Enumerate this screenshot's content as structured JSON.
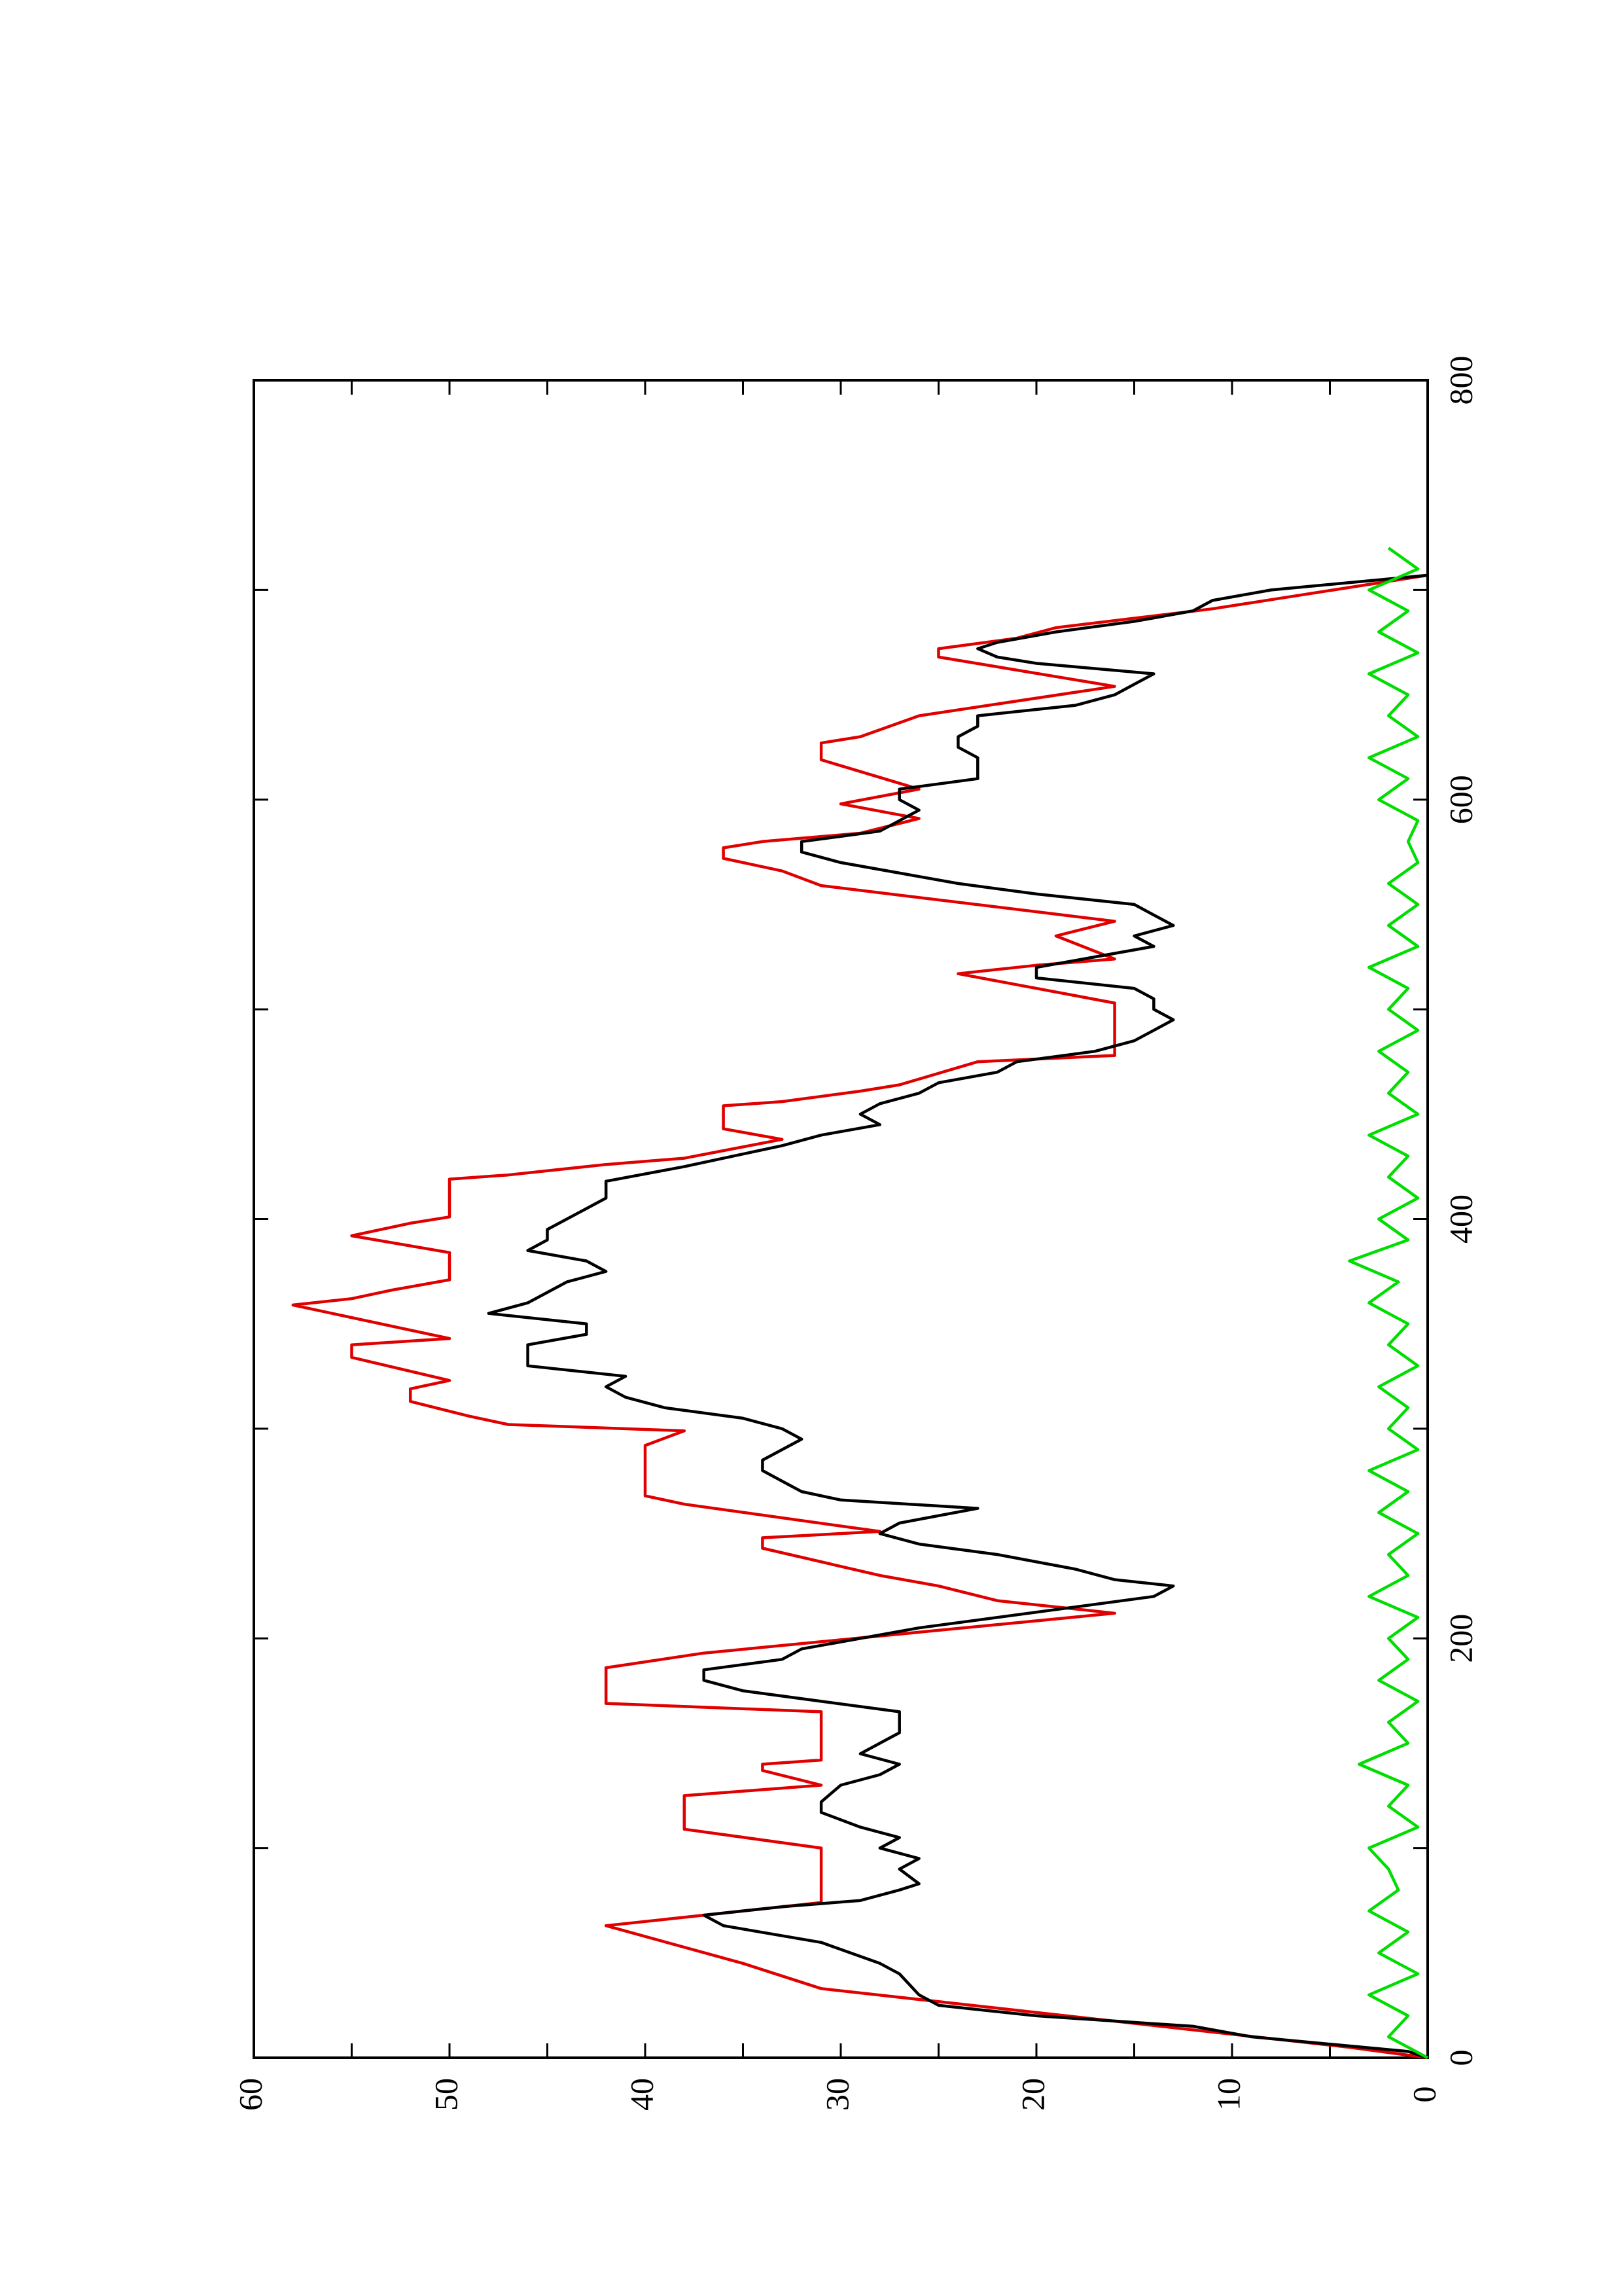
{
  "chart_data": {
    "type": "line",
    "orientation": "rotated",
    "xlim": [
      0,
      800
    ],
    "xticks": [
      0,
      200,
      400,
      600,
      800
    ],
    "xminorticks": [
      100,
      300,
      500,
      700
    ],
    "ylim": [
      0,
      60
    ],
    "yticks": [
      0,
      10,
      20,
      30,
      40,
      50,
      60
    ],
    "yminorticks": [
      5,
      15,
      25,
      35,
      45,
      55
    ],
    "series": [
      {
        "color": "#e00000",
        "x": [
          0,
          5,
          33,
          45,
          63,
          74,
          100,
          109,
          125,
          130,
          137,
          140,
          142,
          165,
          169,
          186,
          193,
          212,
          218,
          225,
          230,
          243,
          248,
          251,
          264,
          268,
          292,
          299,
          302,
          306,
          313,
          319,
          323,
          334,
          340,
          343,
          359,
          362,
          366,
          371,
          384,
          392,
          398,
          401,
          419,
          421,
          426,
          429,
          438,
          443,
          454,
          456,
          461,
          464,
          475,
          478,
          503,
          517,
          521,
          524,
          535,
          542,
          559,
          566,
          572,
          577,
          580,
          584,
          591,
          598,
          605,
          619,
          627,
          630,
          640,
          654,
          668,
          672,
          677,
          682,
          691,
          707
        ],
        "values": [
          0,
          4,
          31,
          35,
          42,
          31,
          31,
          38,
          38,
          31,
          34,
          34,
          31,
          31,
          42,
          42,
          37,
          16,
          22,
          25,
          28,
          34,
          34,
          28,
          38,
          40,
          40,
          38,
          47,
          49,
          52,
          52,
          50,
          55,
          55,
          50,
          58,
          55,
          53,
          50,
          50,
          55,
          52,
          50,
          50,
          47,
          42,
          38,
          33,
          36,
          36,
          33,
          29,
          27,
          23,
          16,
          16,
          24,
          20,
          16,
          19,
          16,
          31,
          33,
          36,
          36,
          34,
          29,
          26,
          30,
          26,
          31,
          31,
          29,
          26,
          16,
          25,
          25,
          21,
          19,
          11,
          0
        ]
      },
      {
        "color": "#000000",
        "x": [
          0,
          3,
          10,
          15,
          20,
          25,
          30,
          40,
          45,
          55,
          63,
          68,
          72,
          75,
          80,
          83,
          90,
          95,
          100,
          105,
          110,
          117,
          122,
          130,
          135,
          140,
          145,
          150,
          155,
          165,
          170,
          175,
          180,
          185,
          190,
          195,
          205,
          215,
          220,
          225,
          228,
          233,
          240,
          245,
          250,
          255,
          262,
          266,
          270,
          275,
          280,
          285,
          290,
          295,
          300,
          305,
          310,
          315,
          320,
          325,
          330,
          340,
          345,
          350,
          355,
          360,
          365,
          370,
          375,
          380,
          385,
          390,
          395,
          400,
          410,
          418,
          425,
          435,
          440,
          445,
          450,
          455,
          460,
          465,
          470,
          475,
          480,
          485,
          490,
          495,
          500,
          505,
          510,
          515,
          520,
          525,
          530,
          535,
          540,
          545,
          550,
          555,
          560,
          565,
          570,
          575,
          580,
          585,
          590,
          595,
          600,
          605,
          610,
          615,
          620,
          625,
          630,
          635,
          640,
          645,
          650,
          655,
          660,
          665,
          668,
          672,
          675,
          680,
          685,
          690,
          695,
          700,
          707
        ],
        "values": [
          0,
          1,
          9,
          12,
          20,
          25,
          26,
          27,
          28,
          31,
          36,
          37,
          33,
          29,
          27,
          26,
          27,
          26,
          28,
          27,
          29,
          31,
          31,
          30,
          28,
          27,
          29,
          28,
          27,
          27,
          31,
          35,
          37,
          37,
          33,
          32,
          26,
          18,
          14,
          13,
          16,
          18,
          22,
          26,
          28,
          27,
          23,
          30,
          32,
          33,
          34,
          34,
          33,
          32,
          33,
          35,
          39,
          41,
          42,
          41,
          46,
          46,
          43,
          43,
          48,
          46,
          45,
          44,
          42,
          43,
          46,
          45,
          45,
          44,
          42,
          42,
          38,
          33,
          31,
          28,
          29,
          28,
          26,
          25,
          22,
          21,
          17,
          15,
          14,
          13,
          14,
          14,
          15,
          20,
          20,
          17,
          14,
          15,
          13,
          14,
          15,
          20,
          24,
          27,
          30,
          32,
          32,
          28,
          27,
          26,
          27,
          27,
          23,
          23,
          23,
          24,
          24,
          23,
          23,
          18,
          16,
          15,
          14,
          20,
          22,
          23,
          22,
          19,
          15,
          12,
          11,
          8,
          0
        ]
      },
      {
        "color": "#00dd00",
        "x": [
          0,
          10,
          20,
          30,
          40,
          50,
          60,
          70,
          80,
          90,
          100,
          110,
          120,
          130,
          140,
          150,
          160,
          170,
          180,
          190,
          200,
          210,
          220,
          230,
          240,
          250,
          260,
          270,
          280,
          290,
          300,
          310,
          320,
          330,
          340,
          350,
          360,
          370,
          380,
          390,
          400,
          410,
          420,
          430,
          440,
          450,
          460,
          470,
          480,
          490,
          500,
          510,
          520,
          530,
          540,
          550,
          560,
          570,
          580,
          590,
          600,
          610,
          620,
          630,
          640,
          650,
          660,
          670,
          680,
          690,
          700,
          710,
          720
        ],
        "values": [
          0,
          2,
          1,
          3,
          0.5,
          2.5,
          1,
          3,
          1.5,
          2,
          3,
          0.5,
          2,
          1,
          3.5,
          1,
          2,
          0.5,
          2.5,
          1,
          2,
          0.5,
          3,
          1,
          2,
          0.5,
          2.5,
          1,
          3,
          0.5,
          2,
          1,
          2.5,
          0.5,
          2,
          1,
          3,
          1.5,
          4,
          1,
          2.5,
          0.5,
          2,
          1,
          3,
          0.5,
          2,
          1,
          2.5,
          0.5,
          2,
          1,
          3,
          0.5,
          2,
          0.5,
          2,
          0.5,
          1,
          0.5,
          2.5,
          1,
          3,
          0.5,
          2,
          1,
          3,
          0.5,
          2.5,
          1,
          3,
          0.5,
          2
        ]
      }
    ]
  }
}
